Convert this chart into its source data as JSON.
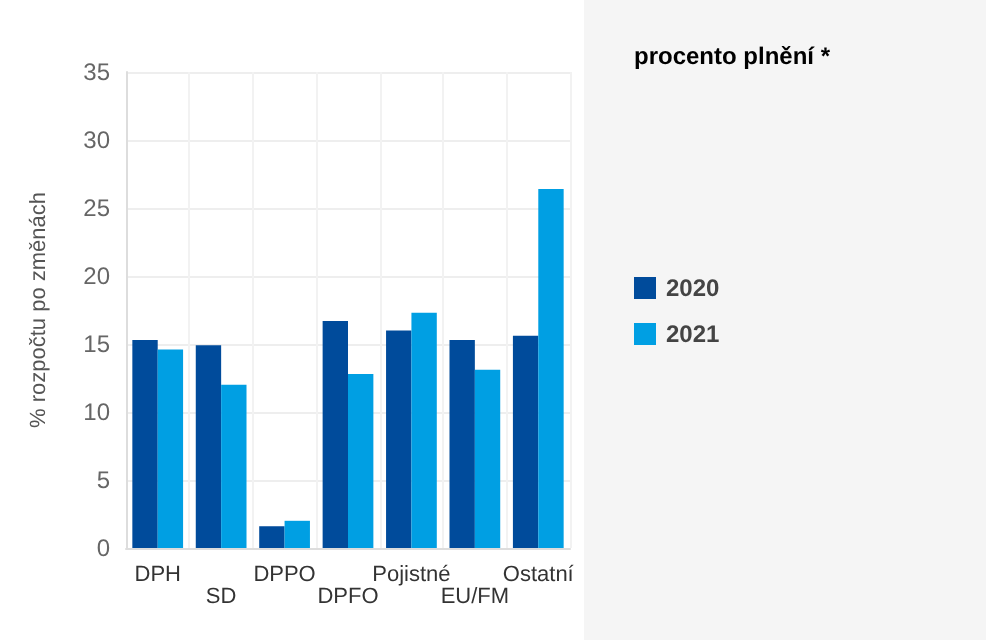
{
  "chart_data": {
    "type": "bar",
    "title": "procento plnění *",
    "ylabel": "% rozpočtu po změnách",
    "categories": [
      "DPH",
      "SD",
      "DPPO",
      "DPFO",
      "Pojistné",
      "EU/FM",
      "Ostatní"
    ],
    "series": [
      {
        "name": "2020",
        "color": "#004b9b",
        "values": [
          15.3,
          14.9,
          1.6,
          16.7,
          16.0,
          15.3,
          15.6
        ]
      },
      {
        "name": "2021",
        "color": "#009fe3",
        "values": [
          14.6,
          12.0,
          2.0,
          12.8,
          17.3,
          13.1,
          26.4
        ]
      }
    ],
    "ylim": [
      0,
      35
    ],
    "yticks": [
      0,
      5,
      10,
      15,
      20,
      25,
      30,
      35
    ],
    "grid": true,
    "legend": "right"
  }
}
